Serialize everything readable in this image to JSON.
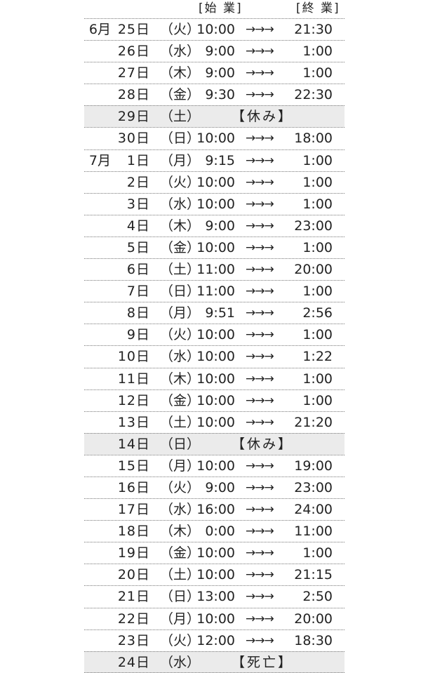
{
  "header": {
    "start_label": "[始 業]",
    "end_label": "[終 業]"
  },
  "arrow": "→→→",
  "rows": [
    {
      "month": "6月",
      "day": "25日",
      "weekday": "（火）",
      "start": "10:00",
      "end": "21:30"
    },
    {
      "month": "",
      "day": "26日",
      "weekday": "（水）",
      "start": "9:00",
      "end": "1:00"
    },
    {
      "month": "",
      "day": "27日",
      "weekday": "（木）",
      "start": "9:00",
      "end": "1:00"
    },
    {
      "month": "",
      "day": "28日",
      "weekday": "（金）",
      "start": "9:30",
      "end": "22:30"
    },
    {
      "month": "",
      "day": "29日",
      "weekday": "（土）",
      "note": "【休み】"
    },
    {
      "month": "",
      "day": "30日",
      "weekday": "（日）",
      "start": "10:00",
      "end": "18:00"
    },
    {
      "month": "7月",
      "day": "1日",
      "weekday": "（月）",
      "start": "9:15",
      "end": "1:00"
    },
    {
      "month": "",
      "day": "2日",
      "weekday": "（火）",
      "start": "10:00",
      "end": "1:00"
    },
    {
      "month": "",
      "day": "3日",
      "weekday": "（水）",
      "start": "10:00",
      "end": "1:00"
    },
    {
      "month": "",
      "day": "4日",
      "weekday": "（木）",
      "start": "9:00",
      "end": "23:00"
    },
    {
      "month": "",
      "day": "5日",
      "weekday": "（金）",
      "start": "10:00",
      "end": "1:00"
    },
    {
      "month": "",
      "day": "6日",
      "weekday": "（土）",
      "start": "11:00",
      "end": "20:00"
    },
    {
      "month": "",
      "day": "7日",
      "weekday": "（日）",
      "start": "11:00",
      "end": "1:00"
    },
    {
      "month": "",
      "day": "8日",
      "weekday": "（月）",
      "start": "9:51",
      "end": "2:56"
    },
    {
      "month": "",
      "day": "9日",
      "weekday": "（火）",
      "start": "10:00",
      "end": "1:00"
    },
    {
      "month": "",
      "day": "10日",
      "weekday": "（水）",
      "start": "10:00",
      "end": "1:22"
    },
    {
      "month": "",
      "day": "11日",
      "weekday": "（木）",
      "start": "10:00",
      "end": "1:00"
    },
    {
      "month": "",
      "day": "12日",
      "weekday": "（金）",
      "start": "10:00",
      "end": "1:00"
    },
    {
      "month": "",
      "day": "13日",
      "weekday": "（土）",
      "start": "10:00",
      "end": "21:20"
    },
    {
      "month": "",
      "day": "14日",
      "weekday": "（日）",
      "note": "【休み】"
    },
    {
      "month": "",
      "day": "15日",
      "weekday": "（月）",
      "start": "10:00",
      "end": "19:00"
    },
    {
      "month": "",
      "day": "16日",
      "weekday": "（火）",
      "start": "9:00",
      "end": "23:00"
    },
    {
      "month": "",
      "day": "17日",
      "weekday": "（水）",
      "start": "16:00",
      "end": "24:00"
    },
    {
      "month": "",
      "day": "18日",
      "weekday": "（木）",
      "start": "0:00",
      "end": "11:00"
    },
    {
      "month": "",
      "day": "19日",
      "weekday": "（金）",
      "start": "10:00",
      "end": "1:00"
    },
    {
      "month": "",
      "day": "20日",
      "weekday": "（土）",
      "start": "10:00",
      "end": "21:15"
    },
    {
      "month": "",
      "day": "21日",
      "weekday": "（日）",
      "start": "13:00",
      "end": "2:50"
    },
    {
      "month": "",
      "day": "22日",
      "weekday": "（月）",
      "start": "10:00",
      "end": "20:00"
    },
    {
      "month": "",
      "day": "23日",
      "weekday": "（火）",
      "start": "12:00",
      "end": "18:30"
    },
    {
      "month": "",
      "day": "24日",
      "weekday": "（水）",
      "note": "【死亡】"
    }
  ]
}
